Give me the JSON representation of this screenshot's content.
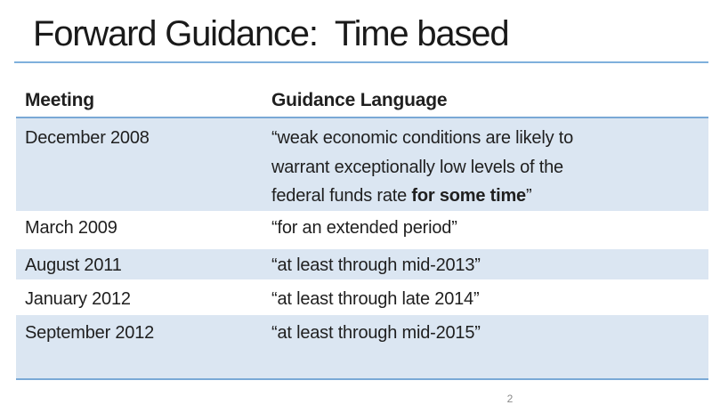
{
  "slide": {
    "title": "Forward Guidance:  Time based",
    "page_number": "2",
    "colors": {
      "title_color": "#1a1a1a",
      "text_color": "#1f1f1f",
      "row_fill": "#dbe6f2",
      "table_border": "#7aa9d6",
      "title_rule": "#7fb0dc",
      "page_number_color": "#8a8a8a"
    }
  },
  "table": {
    "headers": [
      "Meeting",
      "Guidance Language"
    ],
    "rows": [
      {
        "meeting": "December 2008",
        "guidance": [
          {
            "text": "“weak economic conditions are likely to\nwarrant exceptionally low levels of the\nfederal funds rate ",
            "bold": false
          },
          {
            "text": "for some time",
            "bold": true
          },
          {
            "text": "”",
            "bold": false
          }
        ]
      },
      {
        "meeting": "March 2009",
        "guidance": [
          {
            "text": "“for an extended period”",
            "bold": false
          }
        ]
      },
      {
        "meeting": "August 2011",
        "guidance": [
          {
            "text": "“at least through mid-2013”",
            "bold": false
          }
        ]
      },
      {
        "meeting": "January 2012",
        "guidance": [
          {
            "text": "“at least through late 2014”",
            "bold": false
          }
        ]
      },
      {
        "meeting": "September 2012",
        "guidance": [
          {
            "text": "“at least through mid-2015”",
            "bold": false
          }
        ]
      }
    ]
  }
}
